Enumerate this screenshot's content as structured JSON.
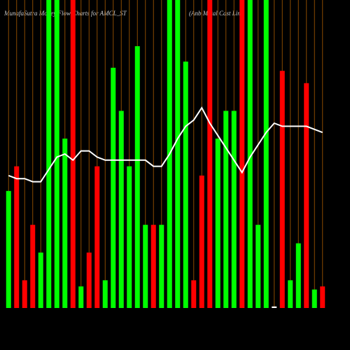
{
  "chart_data": {
    "type": "bar",
    "title": "MunafaSutra Money Flow Charts for AMCL_ST",
    "subtitle": "(Anb Metal Cast Limi",
    "categories": [
      null,
      null,
      null,
      null,
      null,
      null,
      null,
      null,
      null,
      null,
      null,
      null,
      null,
      null,
      null,
      null,
      null,
      null,
      null,
      null,
      null,
      null,
      null,
      null,
      null,
      null,
      null,
      null,
      null,
      null,
      null,
      null,
      null,
      null,
      null,
      null,
      null,
      null,
      null,
      null
    ],
    "values": [
      38,
      46,
      9,
      27,
      18,
      100,
      100,
      55,
      100,
      7,
      18,
      46,
      9,
      78,
      64,
      46,
      85,
      27,
      27,
      27,
      100,
      100,
      80,
      9,
      43,
      100,
      55,
      64,
      64,
      100,
      100,
      27,
      100,
      0.5,
      77,
      9,
      21,
      73,
      6,
      7
    ],
    "colors": [
      "#00ff00",
      "#ff0000",
      "#ff0000",
      "#ff0000",
      "#00ff00",
      "#00ff00",
      "#00ff00",
      "#00ff00",
      "#ff0000",
      "#00ff00",
      "#ff0000",
      "#ff0000",
      "#00ff00",
      "#00ff00",
      "#00ff00",
      "#00ff00",
      "#00ff00",
      "#00ff00",
      "#ff0000",
      "#00ff00",
      "#00ff00",
      "#00ff00",
      "#00ff00",
      "#ff0000",
      "#ff0000",
      "#ff0000",
      "#00ff00",
      "#00ff00",
      "#00ff00",
      "#ff0000",
      "#00ff00",
      "#00ff00",
      "#00ff00",
      "#ffffff",
      "#ff0000",
      "#00ff00",
      "#00ff00",
      "#ff0000",
      "#00ff00",
      "#ff0000"
    ],
    "line_values": [
      43,
      42,
      42,
      41,
      41,
      45,
      49,
      50,
      48,
      51,
      51,
      49,
      48,
      48,
      48,
      48,
      48,
      48,
      46,
      46,
      50,
      55,
      59,
      61,
      65,
      60,
      56,
      52,
      48,
      44,
      49,
      53,
      57,
      60,
      59,
      59,
      59,
      59,
      58,
      57
    ],
    "line_color": "#ffffff",
    "ylim": [
      0,
      100
    ]
  }
}
